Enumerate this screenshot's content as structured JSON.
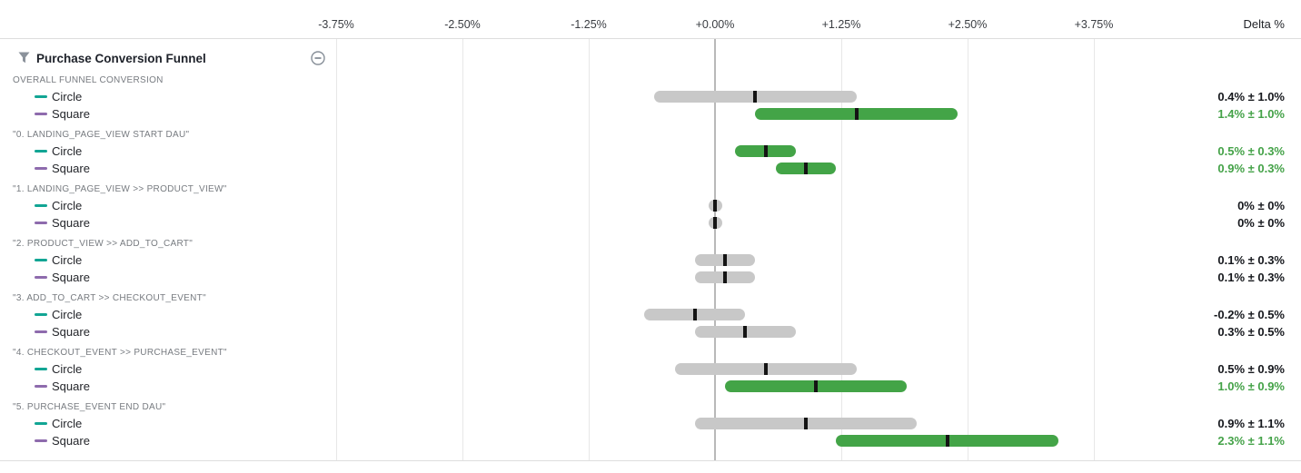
{
  "header": {
    "title": "Purchase Conversion Funnel",
    "filter_icon": "funnel-filter-icon",
    "collapse_icon": "minus-circle-icon"
  },
  "axis": {
    "delta_header": "Delta %"
  },
  "chart_data": {
    "type": "interval",
    "title": "Purchase Conversion Funnel",
    "xlabel": "Delta %",
    "xlim": [
      -3.77,
      3.79
    ],
    "x_ticks": [
      -3.75,
      -2.5,
      -1.25,
      0,
      1.25,
      2.5,
      3.75
    ],
    "x_tick_labels": [
      "-3.75%",
      "-2.50%",
      "-1.25%",
      "+0.00%",
      "+1.25%",
      "+2.50%",
      "+3.75%"
    ],
    "grid": "vertical",
    "legend_position": "left-of-rows",
    "variant_colors": {
      "Circle": "#12a594",
      "Square": "#8e6bad"
    },
    "colors": {
      "significant_positive_bar": "#43a447",
      "significant_positive_text": "#44a248",
      "not_significant_bar": "#c8c8c8",
      "not_significant_text": "#16181d",
      "point_tick": "#141414",
      "zero_line": "#b9b9b9",
      "gridline": "#e7e7e7"
    },
    "groups": [
      {
        "label": "OVERALL FUNNEL CONVERSION",
        "rows": [
          {
            "variant": "Circle",
            "delta": 0.4,
            "ci": 1.0,
            "display": "0.4% ± 1.0%",
            "significant": false
          },
          {
            "variant": "Square",
            "delta": 1.4,
            "ci": 1.0,
            "display": "1.4% ± 1.0%",
            "significant": true
          }
        ]
      },
      {
        "label": "\"0. LANDING_PAGE_VIEW START DAU\"",
        "rows": [
          {
            "variant": "Circle",
            "delta": 0.5,
            "ci": 0.3,
            "display": "0.5% ± 0.3%",
            "significant": true
          },
          {
            "variant": "Square",
            "delta": 0.9,
            "ci": 0.3,
            "display": "0.9% ± 0.3%",
            "significant": true
          }
        ]
      },
      {
        "label": "\"1. LANDING_PAGE_VIEW >> PRODUCT_VIEW\"",
        "rows": [
          {
            "variant": "Circle",
            "delta": 0,
            "ci": 0,
            "display": "0% ± 0%",
            "significant": false
          },
          {
            "variant": "Square",
            "delta": 0,
            "ci": 0,
            "display": "0% ± 0%",
            "significant": false
          }
        ]
      },
      {
        "label": "\"2. PRODUCT_VIEW >> ADD_TO_CART\"",
        "rows": [
          {
            "variant": "Circle",
            "delta": 0.1,
            "ci": 0.3,
            "display": "0.1% ± 0.3%",
            "significant": false
          },
          {
            "variant": "Square",
            "delta": 0.1,
            "ci": 0.3,
            "display": "0.1% ± 0.3%",
            "significant": false
          }
        ]
      },
      {
        "label": "\"3. ADD_TO_CART >> CHECKOUT_EVENT\"",
        "rows": [
          {
            "variant": "Circle",
            "delta": -0.2,
            "ci": 0.5,
            "display": "-0.2% ± 0.5%",
            "significant": false
          },
          {
            "variant": "Square",
            "delta": 0.3,
            "ci": 0.5,
            "display": "0.3% ± 0.5%",
            "significant": false
          }
        ]
      },
      {
        "label": "\"4. CHECKOUT_EVENT >> PURCHASE_EVENT\"",
        "rows": [
          {
            "variant": "Circle",
            "delta": 0.5,
            "ci": 0.9,
            "display": "0.5% ± 0.9%",
            "significant": false
          },
          {
            "variant": "Square",
            "delta": 1.0,
            "ci": 0.9,
            "display": "1.0% ± 0.9%",
            "significant": true
          }
        ]
      },
      {
        "label": "\"5. PURCHASE_EVENT END DAU\"",
        "rows": [
          {
            "variant": "Circle",
            "delta": 0.9,
            "ci": 1.1,
            "display": "0.9% ± 1.1%",
            "significant": false
          },
          {
            "variant": "Square",
            "delta": 2.3,
            "ci": 1.1,
            "display": "2.3% ± 1.1%",
            "significant": true
          }
        ]
      }
    ]
  }
}
